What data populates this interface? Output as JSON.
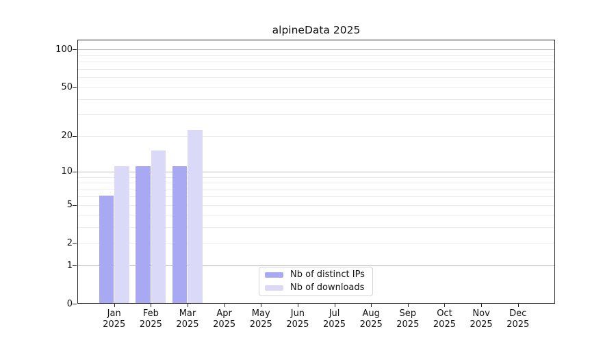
{
  "chart_data": {
    "type": "bar",
    "title": "alpineData 2025",
    "categories": [
      "Jan",
      "Feb",
      "Mar",
      "Apr",
      "May",
      "Jun",
      "Jul",
      "Aug",
      "Sep",
      "Oct",
      "Nov",
      "Dec"
    ],
    "year_label": "2025",
    "series": [
      {
        "name": "Nb of distinct IPs",
        "color": "#a8a8f3",
        "values": [
          6,
          11,
          11,
          null,
          null,
          null,
          null,
          null,
          null,
          null,
          null,
          null
        ]
      },
      {
        "name": "Nb of downloads",
        "color": "#dadaf8",
        "values": [
          11,
          15,
          22,
          null,
          null,
          null,
          null,
          null,
          null,
          null,
          null,
          null
        ]
      }
    ],
    "ylabel": "",
    "xlabel": "",
    "yscale": "symlog-log1p",
    "ylim": [
      0,
      119
    ],
    "yticks": [
      0,
      1,
      2,
      5,
      10,
      20,
      50,
      100
    ],
    "major_gridlines": [
      1,
      10,
      100
    ],
    "minor_gridlines": [
      2,
      3,
      4,
      5,
      6,
      7,
      8,
      9,
      20,
      30,
      40,
      50,
      60,
      70,
      80,
      90
    ],
    "grid": true,
    "legend_position": "bottom-center-inside"
  },
  "colors": {
    "axis": "#222222",
    "major_grid": "#c0c0c0",
    "minor_grid": "#ececec",
    "background": "#ffffff"
  }
}
